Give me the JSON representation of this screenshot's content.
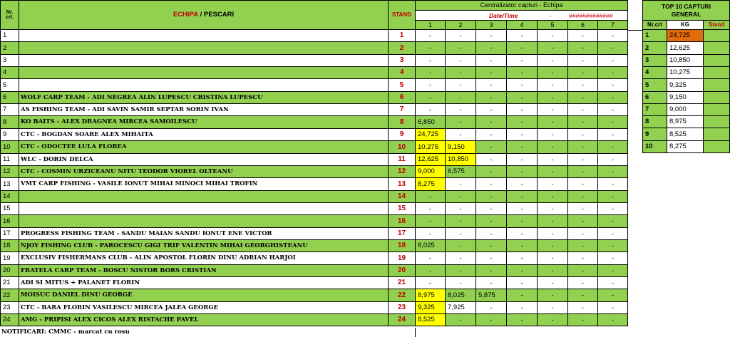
{
  "header": {
    "nrcrt_line1": "Nr.",
    "nrcrt_line2": "crt.",
    "echipa": "ECHIPA",
    "slash_pescari": " / PESCARI",
    "stand": "STAND",
    "centralizator": "Centralizator capturi - Echipa",
    "datetime": "Date/Time",
    "dash": "-",
    "hashes": "#############",
    "columns": [
      "1",
      "2",
      "3",
      "4",
      "5",
      "6",
      "7"
    ]
  },
  "rows": [
    {
      "nr": "1",
      "team": "",
      "stand": "1",
      "vals": [
        "-",
        "-",
        "-",
        "-",
        "-",
        "-",
        "-"
      ]
    },
    {
      "nr": "2",
      "team": "",
      "stand": "2",
      "vals": [
        "-",
        "-",
        "-",
        "-",
        "-",
        "-",
        "-"
      ]
    },
    {
      "nr": "3",
      "team": "",
      "stand": "3",
      "vals": [
        "-",
        "-",
        "-",
        "-",
        "-",
        "-",
        "-"
      ]
    },
    {
      "nr": "4",
      "team": "",
      "stand": "4",
      "vals": [
        "-",
        "-",
        "-",
        "-",
        "-",
        "-",
        "-"
      ]
    },
    {
      "nr": "5",
      "team": "",
      "stand": "5",
      "vals": [
        "-",
        "-",
        "-",
        "-",
        "-",
        "-",
        "-"
      ]
    },
    {
      "nr": "6",
      "team": "WOLF CARP TEAM - ADI NEGREA ALIN LUPESCU CRISTINA LUPESCU",
      "stand": "6",
      "vals": [
        "-",
        "-",
        "-",
        "-",
        "-",
        "-",
        "-"
      ]
    },
    {
      "nr": "7",
      "team": "AS FISHING TEAM - ADI SAVIN SAMIR SEPTAR SORIN IVAN",
      "stand": "7",
      "vals": [
        "-",
        "-",
        "-",
        "-",
        "-",
        "-",
        "-"
      ]
    },
    {
      "nr": "8",
      "team": "KO BAITS - ALEX DRAGNEA MIRCEA SAMOILESCU",
      "stand": "8",
      "vals": [
        "6,850",
        "-",
        "-",
        "-",
        "-",
        "-",
        "-"
      ]
    },
    {
      "nr": "9",
      "team": "CTC - BOGDAN SOARE ALEX MIHAITA",
      "stand": "9",
      "vals": [
        "24,725",
        "-",
        "-",
        "-",
        "-",
        "-",
        "-"
      ]
    },
    {
      "nr": "10",
      "team": "CTC - ODOCTEE LULA FLOREA",
      "stand": "10",
      "vals": [
        "10,275",
        "9,150",
        "-",
        "-",
        "-",
        "-",
        "-"
      ]
    },
    {
      "nr": "11",
      "team": "WLC - DORIN DELCA",
      "stand": "11",
      "vals": [
        "12,625",
        "10,850",
        "-",
        "-",
        "-",
        "-",
        "-"
      ]
    },
    {
      "nr": "12",
      "team": "CTC - COSMIN URZICEANU NITU TEODOR VIOREL OLTEANU",
      "stand": "12",
      "vals": [
        "9,000",
        "6,575",
        "-",
        "-",
        "-",
        "-",
        "-"
      ]
    },
    {
      "nr": "13",
      "team": "VMT CARP FISHING - VASILE IONUT MIHAI MINOCI MIHAI TROFIN",
      "stand": "13",
      "vals": [
        "8,275",
        "-",
        "-",
        "-",
        "-",
        "-",
        "-"
      ]
    },
    {
      "nr": "14",
      "team": "",
      "stand": "14",
      "vals": [
        "-",
        "-",
        "-",
        "-",
        "-",
        "-",
        "-"
      ]
    },
    {
      "nr": "15",
      "team": "",
      "stand": "15",
      "vals": [
        "-",
        "-",
        "-",
        "-",
        "-",
        "-",
        "-"
      ]
    },
    {
      "nr": "16",
      "team": "",
      "stand": "16",
      "vals": [
        "-",
        "-",
        "-",
        "-",
        "-",
        "-",
        "-"
      ]
    },
    {
      "nr": "17",
      "team": "PROGRESS FISHING TEAM - SANDU MAIAN SANDU IONUT ENE VICTOR",
      "stand": "17",
      "vals": [
        "-",
        "-",
        "-",
        "-",
        "-",
        "-",
        "-"
      ]
    },
    {
      "nr": "18",
      "team": "NJOY FISHING CLUB - PAROCESCU GIGI TRIF VALENTIN MIHAI GEORGHISTEANU",
      "stand": "18",
      "vals": [
        "8,025",
        "-",
        "-",
        "-",
        "-",
        "-",
        "-"
      ]
    },
    {
      "nr": "19",
      "team": "EXCLUSIV FISHERMANS CLUB - ALIN APOSTOL FLORIN DINU ADRIAN HARJOI",
      "stand": "19",
      "vals": [
        "-",
        "-",
        "-",
        "-",
        "-",
        "-",
        "-"
      ]
    },
    {
      "nr": "20",
      "team": "FRATELA CARP TEAM - BOSCU NISTOR BORS CRISTIAN",
      "stand": "20",
      "vals": [
        "-",
        "-",
        "-",
        "-",
        "-",
        "-",
        "-"
      ]
    },
    {
      "nr": "21",
      "team": "ADI SI MITUS + PALANET FLORIN",
      "stand": "21",
      "vals": [
        "-",
        "-",
        "-",
        "-",
        "-",
        "-",
        "-"
      ]
    },
    {
      "nr": "22",
      "team": "MOISUC DANIEL DINU GEORGE",
      "stand": "22",
      "vals": [
        "8,975",
        "8,025",
        "5,875",
        "-",
        "-",
        "-",
        "-"
      ]
    },
    {
      "nr": "23",
      "team": "CTC - BARA FLORIN VASILESCU MIRCEA JALEA GEORGE",
      "stand": "23",
      "vals": [
        "9,325",
        "7,925",
        "-",
        "-",
        "-",
        "-",
        "-"
      ]
    },
    {
      "nr": "24",
      "team": "AMG - PRIPISI ALEX CICOS ALEX RISTACHE PAVEL",
      "stand": "24",
      "vals": [
        "8,525",
        "-",
        "-",
        "-",
        "-",
        "-",
        "-"
      ]
    }
  ],
  "notes": "NOTIFICARI: CMMC -  marcat cu rosu",
  "top10": {
    "title_line1": "TOP 10 CAPTURI",
    "title_line2": "GENERAL",
    "col_nr": "Nr.crt",
    "col_kg": "KG",
    "col_stand": "Stand",
    "rows": [
      {
        "nr": "1",
        "kg": "24,725",
        "stand": ""
      },
      {
        "nr": "2",
        "kg": "12,625",
        "stand": ""
      },
      {
        "nr": "3",
        "kg": "10,850",
        "stand": ""
      },
      {
        "nr": "4",
        "kg": "10,275",
        "stand": ""
      },
      {
        "nr": "5",
        "kg": "9,325",
        "stand": ""
      },
      {
        "nr": "6",
        "kg": "9,150",
        "stand": ""
      },
      {
        "nr": "7",
        "kg": "9,000",
        "stand": ""
      },
      {
        "nr": "8",
        "kg": "8,975",
        "stand": ""
      },
      {
        "nr": "9",
        "kg": "8,525",
        "stand": ""
      },
      {
        "nr": "10",
        "kg": "8,275",
        "stand": ""
      }
    ]
  },
  "colors": {
    "green": "#92d050",
    "yellow": "#ffff00",
    "orange": "#e26b0a",
    "red_text": "#c00000"
  }
}
